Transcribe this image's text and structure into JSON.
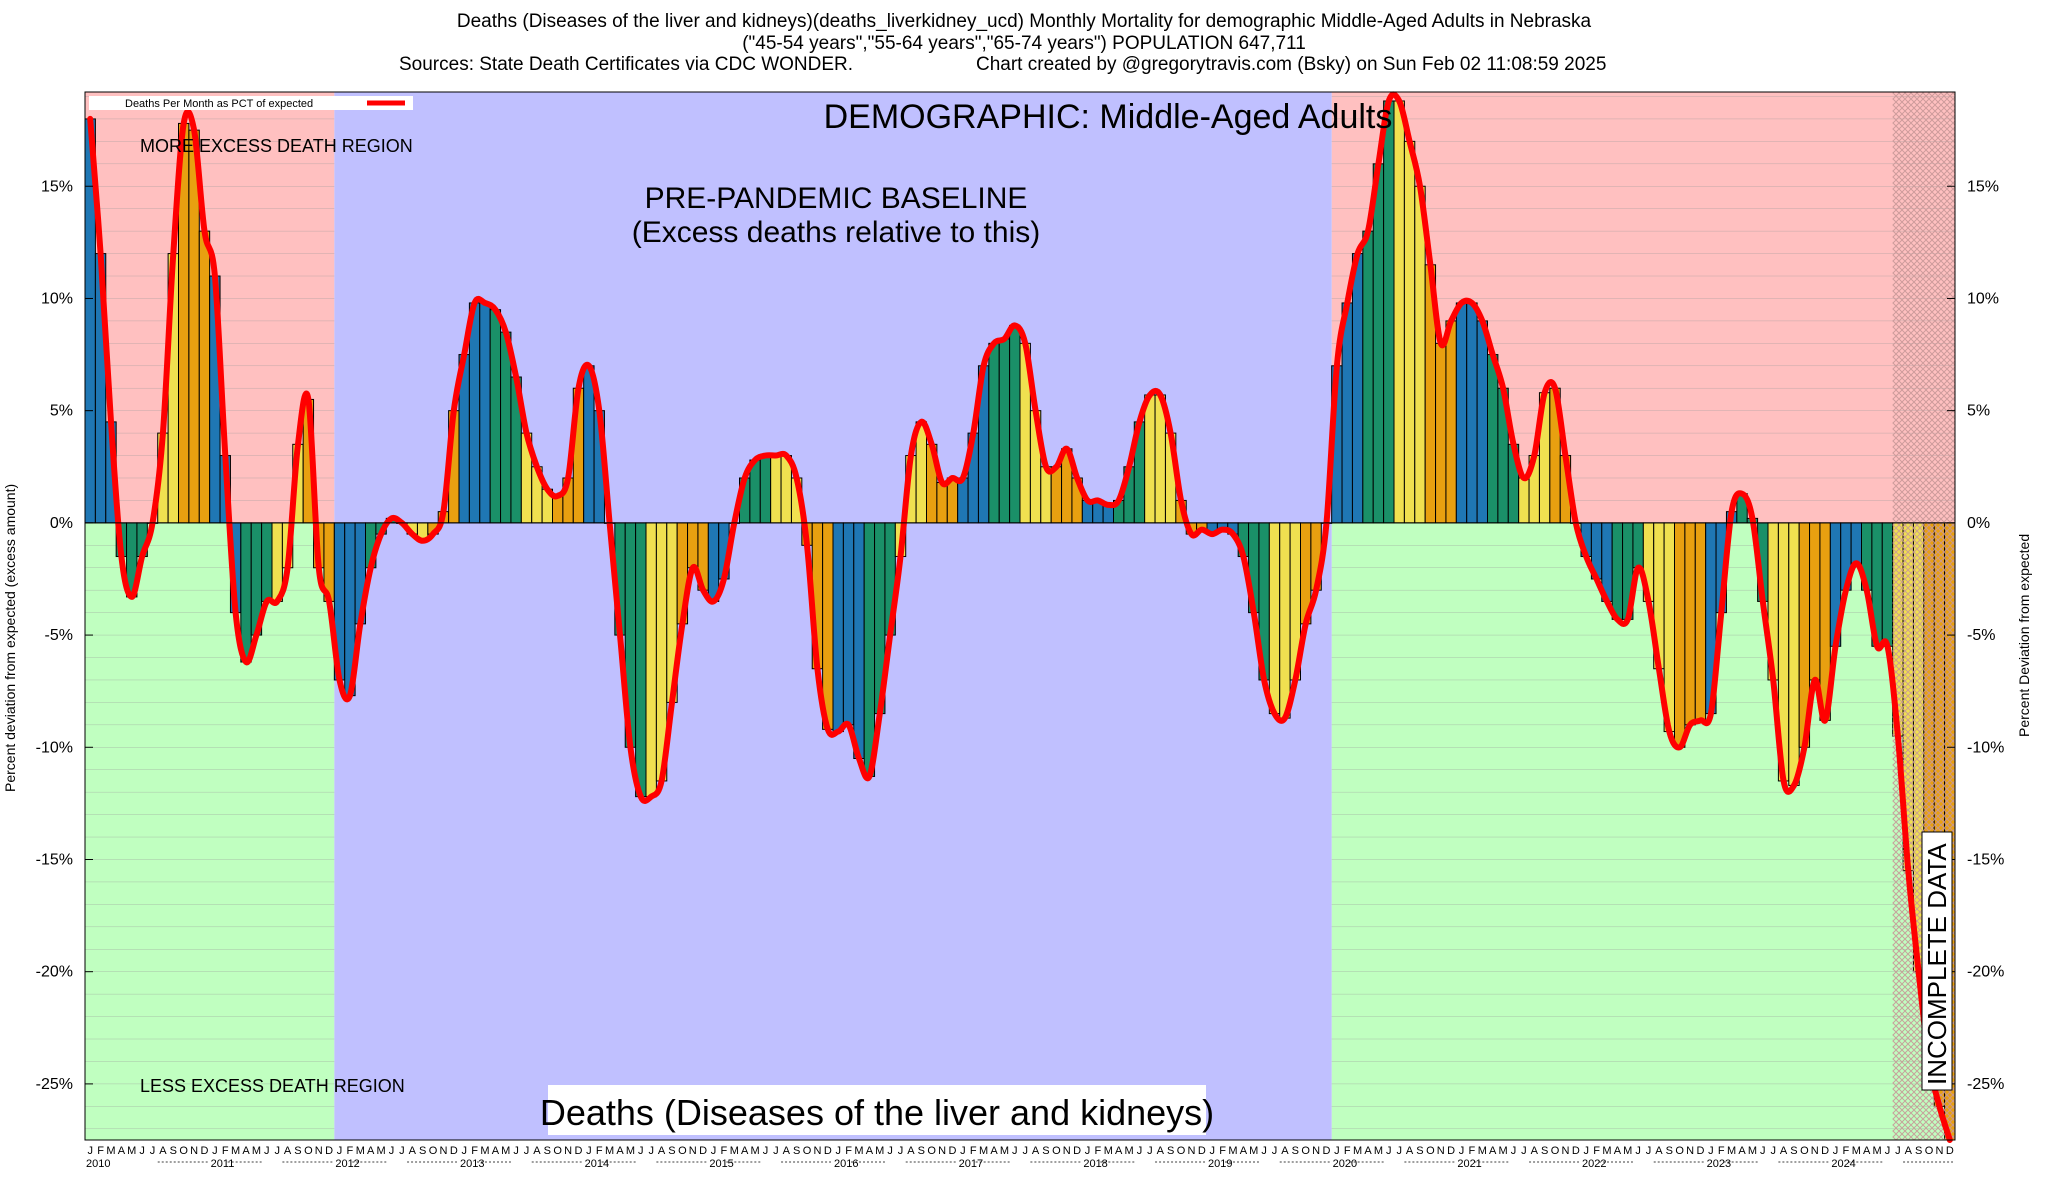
{
  "header": {
    "title": "Deaths (Diseases of the liver and kidneys)(deaths_liverkidney_ucd) Monthly Mortality for demographic Middle-Aged Adults in Nebraska",
    "subtitle": "(\"45-54 years\",\"55-64 years\",\"65-74 years\") POPULATION 647,711",
    "sources": "Sources: State Death Certificates via CDC WONDER.",
    "credit": "Chart created by @gregorytravis.com (Bsky) on Sun Feb 02 11:08:59 2025"
  },
  "colors": {
    "excess_region": "#ffc0c0",
    "less_region": "#c0ffc0",
    "baseline_region": "#c0c0ff",
    "line": "#ff0000",
    "bar_palette": [
      "#1f77b4",
      "#1a9068",
      "#f0e050",
      "#e8a010"
    ],
    "hatch": "#c89898"
  },
  "chart_data": {
    "type": "bar",
    "title": "DEMOGRAPHIC: Middle-Aged Adults",
    "bottom_title": "Deaths (Diseases of the liver and kidneys)",
    "ylabel_left": "Percent deviation from expected (excess amount)",
    "ylabel_right": "Percent Deviation from expected",
    "legend": "Deaths Per Month as PCT of expected",
    "ylim": [
      -27.5,
      19.2
    ],
    "y_ticks": [
      15,
      10,
      5,
      0,
      -5,
      -10,
      -15,
      -20,
      -25
    ],
    "y_tick_labels": [
      "15%",
      "10%",
      "5%",
      "0%",
      "-5%",
      "-10%",
      "-15%",
      "-20%",
      "-25%"
    ],
    "start": "2010-01",
    "month_letters": [
      "J",
      "F",
      "M",
      "A",
      "M",
      "J",
      "J",
      "A",
      "S",
      "O",
      "N",
      "D"
    ],
    "years": [
      "2010",
      "2011",
      "2012",
      "2013",
      "2014",
      "2015",
      "2016",
      "2017",
      "2018",
      "2019",
      "2020",
      "2021",
      "2022",
      "2023",
      "2024"
    ],
    "baseline_period": [
      "2012-01",
      "2019-12"
    ],
    "incomplete_from": "2024-07",
    "annotations": {
      "more_excess": "MORE EXCESS DEATH REGION",
      "less_excess": "LESS EXCESS DEATH REGION",
      "baseline_line1": "PRE-PANDEMIC BASELINE",
      "baseline_line2": "(Excess deaths relative to this)",
      "incomplete": "INCOMPLETE DATA"
    },
    "values": [
      18.0,
      12.0,
      4.5,
      -1.5,
      -3.3,
      -1.5,
      0.0,
      4.0,
      12.0,
      17.8,
      17.5,
      13.0,
      11.0,
      3.0,
      -4.0,
      -6.2,
      -5.0,
      -3.5,
      -3.5,
      -2.0,
      3.5,
      5.5,
      -2.0,
      -3.5,
      -7.0,
      -7.7,
      -4.5,
      -2.0,
      -0.5,
      0.2,
      0.0,
      -0.5,
      -0.8,
      -0.5,
      0.5,
      5.0,
      7.5,
      9.8,
      9.8,
      9.5,
      8.5,
      6.5,
      4.0,
      2.5,
      1.5,
      1.2,
      2.0,
      6.0,
      7.0,
      5.0,
      0.0,
      -5.0,
      -10.0,
      -12.2,
      -12.2,
      -11.5,
      -8.0,
      -4.5,
      -2.0,
      -3.0,
      -3.5,
      -2.5,
      0.0,
      2.0,
      2.8,
      3.0,
      3.0,
      3.0,
      2.0,
      -1.0,
      -6.5,
      -9.2,
      -9.3,
      -9.0,
      -10.5,
      -11.3,
      -8.5,
      -5.0,
      -1.5,
      3.0,
      4.5,
      3.5,
      1.8,
      2.0,
      2.0,
      4.0,
      7.0,
      8.0,
      8.2,
      8.8,
      8.0,
      5.0,
      2.5,
      2.5,
      3.3,
      2.0,
      1.0,
      1.0,
      0.8,
      1.0,
      2.5,
      4.5,
      5.7,
      5.7,
      4.0,
      1.0,
      -0.5,
      -0.3,
      -0.5,
      -0.3,
      -0.5,
      -1.5,
      -4.0,
      -7.0,
      -8.5,
      -8.7,
      -7.0,
      -4.5,
      -3.0,
      0.0,
      7.0,
      9.8,
      12.0,
      13.0,
      16.0,
      18.8,
      18.8,
      17.0,
      15.0,
      11.5,
      8.0,
      9.0,
      9.8,
      9.8,
      9.0,
      7.5,
      6.0,
      3.5,
      2.0,
      3.0,
      5.8,
      6.0,
      3.0,
      0.0,
      -1.5,
      -2.5,
      -3.5,
      -4.3,
      -4.3,
      -2.0,
      -3.5,
      -6.5,
      -9.3,
      -10.0,
      -9.0,
      -8.8,
      -8.5,
      -4.0,
      0.5,
      1.3,
      0.2,
      -3.5,
      -7.0,
      -11.5,
      -11.7,
      -10.0,
      -7.0,
      -8.8,
      -5.5,
      -3.0,
      -1.8,
      -3.0,
      -5.5,
      -5.5,
      -9.5,
      -15.5,
      -20.0,
      -24.0,
      -26.0,
      -27.5
    ]
  }
}
